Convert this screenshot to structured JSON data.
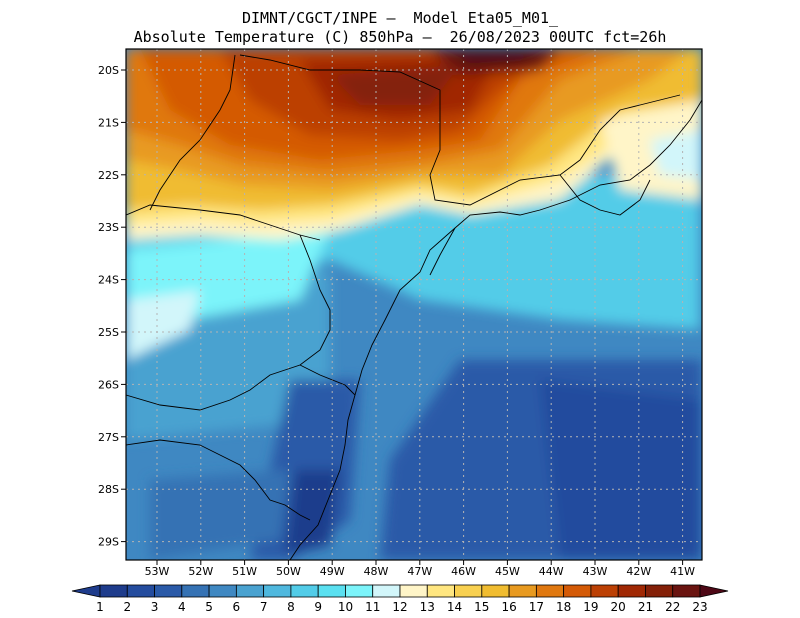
{
  "header": {
    "line1": "DIMNT/CGCT/INPE –  Model Eta05_M01_",
    "line2": "Absolute Temperature (C) 850hPa –  26/08/2023 00UTC fct=26h"
  },
  "axes": {
    "lat_labels": [
      "20S",
      "21S",
      "22S",
      "23S",
      "24S",
      "25S",
      "26S",
      "27S",
      "28S",
      "29S"
    ],
    "lon_labels": [
      "53W",
      "52W",
      "51W",
      "50W",
      "49W",
      "48W",
      "47W",
      "46W",
      "45W",
      "44W",
      "43W",
      "42W",
      "41W"
    ]
  },
  "colorbar": {
    "levels": [
      "1",
      "2",
      "3",
      "4",
      "5",
      "6",
      "7",
      "8",
      "9",
      "10",
      "11",
      "12",
      "13",
      "14",
      "15",
      "16",
      "17",
      "18",
      "19",
      "20",
      "21",
      "22",
      "23"
    ],
    "colors": [
      "#1e3c8c",
      "#244c9e",
      "#2a5aa8",
      "#3572b4",
      "#3f88c2",
      "#4aa2d0",
      "#4fb8de",
      "#52cce8",
      "#5ae0f0",
      "#7cf4fa",
      "#d2f6fa",
      "#fff5c8",
      "#ffe680",
      "#f8d050",
      "#f0bc30",
      "#e89a20",
      "#e07810",
      "#d45a06",
      "#bc4004",
      "#a02804",
      "#842008",
      "#6a1410",
      "#4e0816"
    ]
  }
}
